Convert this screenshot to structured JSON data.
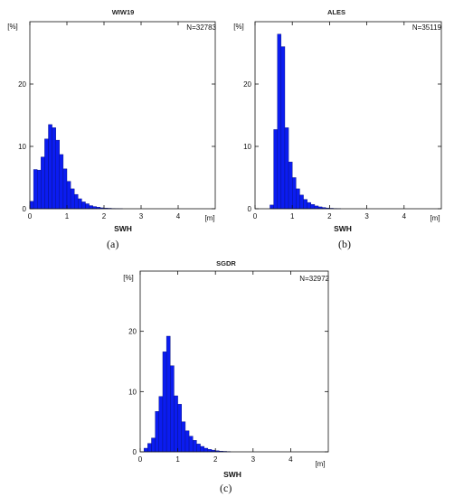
{
  "chart_data": [
    {
      "type": "bar",
      "panel_id": "a",
      "title": "WIW19",
      "annotation": "N=32783",
      "caption": "(a)",
      "xlabel": "SWH",
      "xunit": "[m]",
      "yunit": "[%]",
      "xlim": [
        0,
        5
      ],
      "ylim": [
        0,
        30
      ],
      "xticks": [
        0,
        1,
        2,
        3,
        4
      ],
      "yticks": [
        0,
        10,
        20
      ],
      "bin_width": 0.1,
      "bin_start": 0.0,
      "values": [
        1.2,
        6.3,
        6.2,
        8.3,
        11.2,
        13.5,
        13.0,
        11.0,
        8.7,
        6.4,
        4.4,
        3.2,
        2.3,
        1.6,
        1.1,
        0.8,
        0.5,
        0.35,
        0.25,
        0.15,
        0.1,
        0.08,
        0.05,
        0.03,
        0.02
      ]
    },
    {
      "type": "bar",
      "panel_id": "b",
      "title": "ALES",
      "annotation": "N=35119",
      "caption": "(b)",
      "xlabel": "SWH",
      "xunit": "[m]",
      "yunit": "[%]",
      "xlim": [
        0,
        5
      ],
      "ylim": [
        0,
        30
      ],
      "xticks": [
        0,
        1,
        2,
        3,
        4
      ],
      "yticks": [
        0,
        10,
        20
      ],
      "bin_width": 0.1,
      "bin_start": 0.4,
      "values": [
        0.6,
        12.7,
        28.0,
        26.0,
        13.0,
        7.5,
        5.0,
        3.2,
        2.2,
        1.5,
        1.0,
        0.7,
        0.45,
        0.3,
        0.2,
        0.12,
        0.08,
        0.05,
        0.03
      ]
    },
    {
      "type": "bar",
      "panel_id": "c",
      "title": "SGDR",
      "annotation": "N=32972",
      "caption": "(c)",
      "xlabel": "SWH",
      "xunit": "[m]",
      "yunit": "[%]",
      "xlim": [
        0,
        5
      ],
      "ylim": [
        0,
        30
      ],
      "xticks": [
        0,
        1,
        2,
        3,
        4
      ],
      "yticks": [
        0,
        10,
        20
      ],
      "bin_width": 0.1,
      "bin_start": 0.1,
      "values": [
        0.6,
        1.4,
        2.3,
        6.7,
        9.2,
        16.6,
        19.2,
        14.3,
        9.3,
        7.9,
        5.0,
        3.5,
        2.6,
        1.9,
        1.3,
        0.9,
        0.6,
        0.4,
        0.28,
        0.18,
        0.12,
        0.08,
        0.05
      ]
    }
  ],
  "style": {
    "bar_color": "#0b1cf0",
    "bar_edge": "#06107a",
    "axis_color": "#111111"
  }
}
